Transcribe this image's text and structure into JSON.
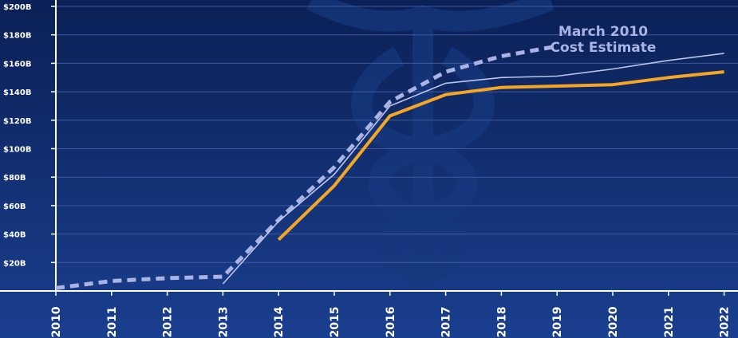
{
  "chart_data": {
    "type": "line",
    "x": [
      "2010",
      "2011",
      "2012",
      "2013",
      "2014",
      "2015",
      "2016",
      "2017",
      "2018",
      "2019",
      "2020",
      "2021",
      "2022"
    ],
    "y_ticks": [
      "$20B",
      "$40B",
      "$60B",
      "$80B",
      "$100B",
      "$120B",
      "$140B",
      "$160B",
      "$180B",
      "$200B"
    ],
    "ylim": [
      0,
      200
    ],
    "grid": true,
    "series": [
      {
        "name": "March 2010 Cost Estimate",
        "style": "dashed",
        "color": "#a9b3e4",
        "values": [
          2,
          7,
          9,
          10,
          50,
          87,
          133,
          154,
          165,
          172,
          null,
          null,
          null
        ]
      },
      {
        "style": "solid-thin",
        "color": "#c6cdf0",
        "values": [
          null,
          null,
          null,
          5,
          49,
          82,
          130,
          146,
          150,
          151,
          156,
          162,
          167
        ]
      },
      {
        "style": "solid-thick",
        "color": "#f5a623",
        "values": [
          null,
          null,
          null,
          null,
          36,
          74,
          123,
          138,
          143,
          144,
          145,
          150,
          154
        ]
      }
    ],
    "annotations": [
      {
        "lines": [
          "March 2010",
          "Cost Estimate"
        ]
      }
    ]
  },
  "colors": {
    "background_top": "#0b2056",
    "background_bottom": "#1a3f8f",
    "grid": "#4a64a8",
    "axis": "#ffffff",
    "emblem": "#16387e"
  }
}
